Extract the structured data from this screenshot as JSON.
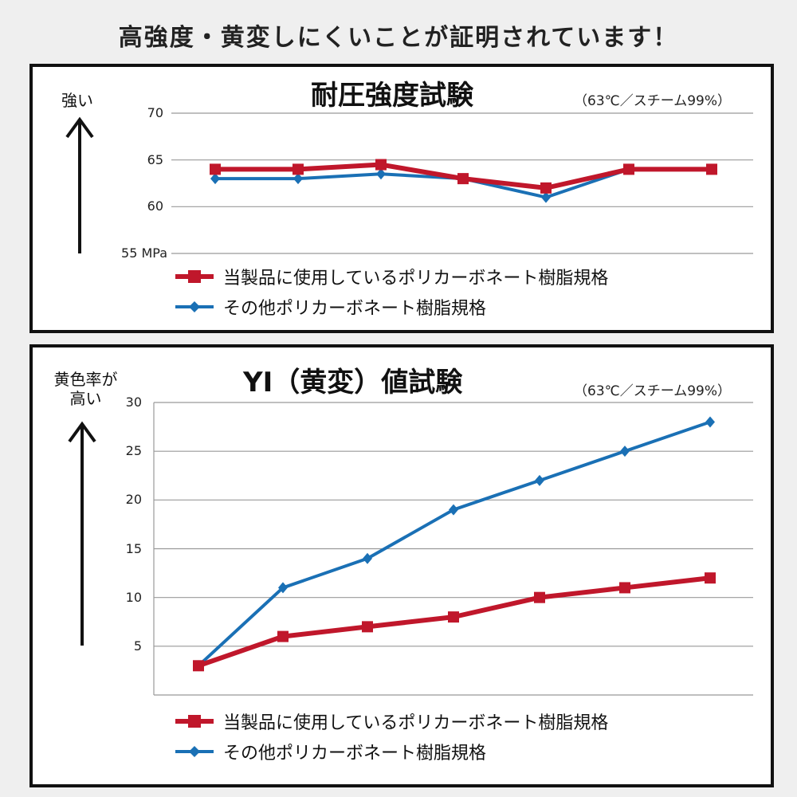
{
  "headline": "高強度・黄変しにくいことが証明されています！",
  "colors": {
    "product": "#c0172b",
    "other": "#1a70b5"
  },
  "chart_data": [
    {
      "type": "line",
      "title": "耐圧強度試験",
      "condition": "（63℃／スチーム99%）",
      "ylabel": "強い",
      "yunit": "MPa",
      "ylim": [
        55,
        70
      ],
      "yticks": [
        "70",
        "65",
        "60",
        "55 MPa"
      ],
      "grid": true,
      "legend_position": "bottom",
      "series": [
        {
          "name": "当製品に使用しているポリカーボネート樹脂規格",
          "marker": "square",
          "values": [
            64,
            64,
            64.5,
            63,
            62,
            64,
            64
          ]
        },
        {
          "name": "その他ポリカーボネート樹脂規格",
          "marker": "diamond",
          "values": [
            63,
            63,
            63.5,
            63,
            61,
            64
          ]
        }
      ]
    },
    {
      "type": "line",
      "title": "YI（黄変）値試験",
      "condition": "（63℃／スチーム99%）",
      "ylabel_line1": "黄色率が",
      "ylabel_line2": "高い",
      "ylim": [
        0,
        30
      ],
      "yticks": [
        "30",
        "25",
        "20",
        "15",
        "10",
        "5"
      ],
      "grid": true,
      "legend_position": "bottom",
      "series": [
        {
          "name": "当製品に使用しているポリカーボネート樹脂規格",
          "marker": "square",
          "values": [
            3,
            6,
            7,
            8,
            10,
            11,
            12
          ]
        },
        {
          "name": "その他ポリカーボネート樹脂規格",
          "marker": "diamond",
          "values": [
            3,
            11,
            14,
            19,
            22,
            25,
            28
          ]
        }
      ]
    }
  ]
}
